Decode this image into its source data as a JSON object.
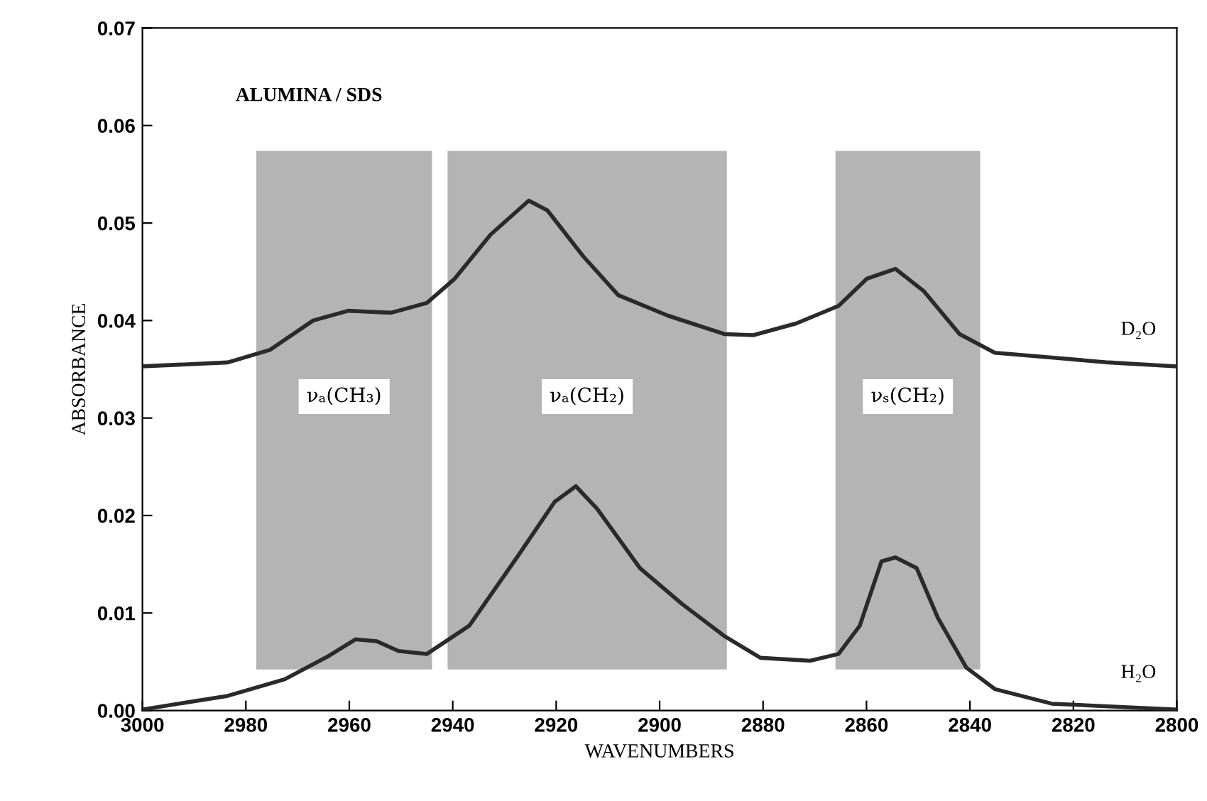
{
  "chart_data": {
    "type": "line",
    "xlabel": "WAVENUMBERS",
    "ylabel": "ABSORBANCE",
    "annotations": [
      "ALUMINA / SDS"
    ],
    "xlim": [
      3000,
      2800
    ],
    "ylim": [
      0,
      0.07
    ],
    "xticks": [
      3000,
      2980,
      2960,
      2940,
      2920,
      2900,
      2880,
      2860,
      2840,
      2820,
      2800
    ],
    "yticks": [
      {
        "value": 0,
        "label": "0.00"
      },
      {
        "value": 0.01,
        "label": "0.01"
      },
      {
        "value": 0.02,
        "label": "0.02"
      },
      {
        "value": 0.03,
        "label": "0.03"
      },
      {
        "value": 0.04,
        "label": "0.04"
      },
      {
        "value": 0.05,
        "label": "0.05"
      },
      {
        "value": 0.06,
        "label": "0.06"
      },
      {
        "value": 0.07,
        "label": "0.07"
      }
    ],
    "grid": false,
    "legend": false,
    "marker": "none",
    "line_style": "solid",
    "bands": [
      {
        "axis": "x",
        "from": 2978,
        "to": 2944,
        "label": "νₐ(CH₃)",
        "color": "#b4b4b4"
      },
      {
        "axis": "x",
        "from": 2941,
        "to": 2887,
        "label": "νₐ(CH₂)",
        "color": "#b4b4b4"
      },
      {
        "axis": "x",
        "from": 2866,
        "to": 2838,
        "label": "νₛ(CH₂)",
        "color": "#b4b4b4"
      }
    ],
    "series": [
      {
        "name": "D₂O",
        "color": "#2a2a2a",
        "x": [
          3000,
          2983.5,
          2975.3,
          2967,
          2960.2,
          2951.9,
          2945,
          2939.6,
          2932.7,
          2925.3,
          2921.7,
          2914.8,
          2908,
          2898.4,
          2887.4,
          2881.9,
          2873.6,
          2865.4,
          2859.9,
          2854.4,
          2848.9,
          2842,
          2835.2,
          2824.2,
          2813.2,
          2800
        ],
        "values": [
          0.0353,
          0.0357,
          0.037,
          0.04,
          0.041,
          0.0408,
          0.0418,
          0.0443,
          0.0488,
          0.0523,
          0.0513,
          0.0466,
          0.0426,
          0.0405,
          0.0386,
          0.0385,
          0.0397,
          0.0415,
          0.0443,
          0.0453,
          0.043,
          0.0386,
          0.0367,
          0.0362,
          0.0357,
          0.0353
        ]
      },
      {
        "name": "H₂O",
        "color": "#2a2a2a",
        "x": [
          3000,
          2983.5,
          2972.5,
          2964.3,
          2958.8,
          2954.7,
          2950.5,
          2945,
          2936.8,
          2927.2,
          2920.3,
          2916.2,
          2912.1,
          2903.8,
          2895.6,
          2887.4,
          2880.5,
          2870.9,
          2865.4,
          2861.3,
          2857.1,
          2854.4,
          2850.3,
          2846.2,
          2840.7,
          2835.2,
          2824.2,
          2800
        ],
        "values": [
          0.0001,
          0.0015,
          0.0032,
          0.0055,
          0.0073,
          0.0071,
          0.0061,
          0.0058,
          0.0087,
          0.016,
          0.0214,
          0.023,
          0.0207,
          0.0146,
          0.0109,
          0.0076,
          0.0054,
          0.0051,
          0.0058,
          0.0087,
          0.0153,
          0.0157,
          0.0146,
          0.0095,
          0.0044,
          0.0022,
          0.0007,
          0.0001
        ]
      }
    ]
  }
}
